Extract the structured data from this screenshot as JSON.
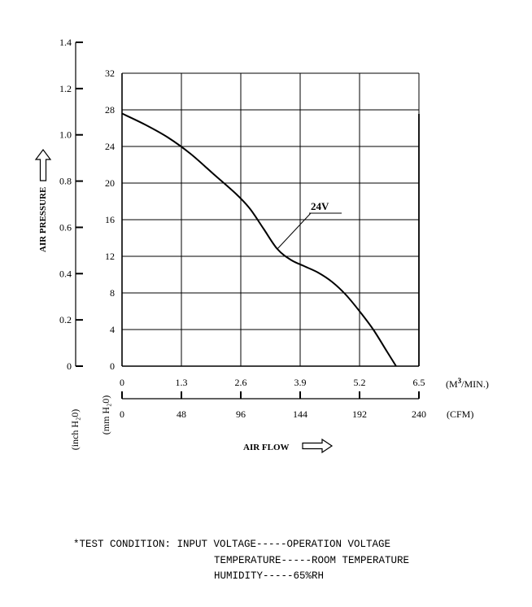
{
  "chart_data": {
    "type": "line",
    "xlabel": "AIR FLOW",
    "ylabel": "AIR PRESSURE",
    "x_primary": {
      "unit_prefix": "(M",
      "unit_sup": "3",
      "unit_suffix": "/MIN.)",
      "ticks": [
        "0",
        "1.3",
        "2.6",
        "3.9",
        "5.2",
        "6.5"
      ],
      "range": [
        0,
        6.5
      ]
    },
    "x_secondary": {
      "unit": "(CFM)",
      "ticks": [
        "0",
        "48",
        "96",
        "144",
        "192",
        "240"
      ],
      "range": [
        0,
        240
      ]
    },
    "y_primary": {
      "unit": "(mm H₂0)",
      "ticks": [
        "0",
        "4",
        "8",
        "12",
        "16",
        "20",
        "24",
        "28",
        "32"
      ],
      "range": [
        0,
        32
      ]
    },
    "y_secondary": {
      "unit": "(inch H₂0)",
      "ticks": [
        "0",
        "0.2",
        "0.4",
        "0.6",
        "0.8",
        "1.0",
        "1.2",
        "1.4"
      ],
      "range": [
        0,
        1.4
      ]
    },
    "grid": true,
    "series": [
      {
        "name": "24V",
        "x": [
          0,
          0.5,
          1.0,
          1.5,
          2.0,
          2.5,
          2.8,
          3.1,
          3.4,
          3.7,
          4.0,
          4.3,
          4.6,
          4.9,
          5.2,
          5.5,
          5.8,
          6.0
        ],
        "y": [
          27.6,
          26.4,
          25.0,
          23.2,
          21.0,
          18.8,
          17.2,
          15.0,
          12.8,
          11.6,
          10.9,
          10.2,
          9.2,
          7.8,
          6.0,
          4.0,
          1.6,
          0
        ]
      }
    ]
  },
  "test_condition": {
    "line1": "*TEST CONDITION: INPUT VOLTAGE-----OPERATION VOLTAGE",
    "line2": "TEMPERATURE-----ROOM TEMPERATURE",
    "line3": "HUMIDITY-----65%RH"
  }
}
